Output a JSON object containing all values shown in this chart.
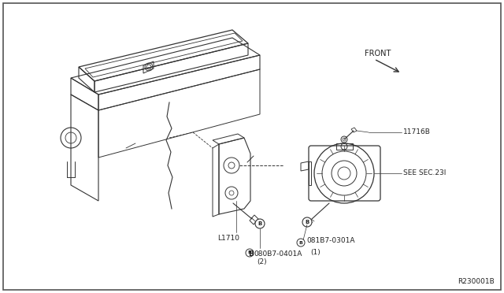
{
  "background_color": "#ffffff",
  "fig_width": 6.4,
  "fig_height": 3.72,
  "dpi": 100,
  "line_color": "#333333",
  "text_color": "#222222",
  "labels": {
    "front": "FRONT",
    "ref_code": "R230001B",
    "part_11716B": "11716B",
    "part_L1710": "L1710",
    "part_see_sec": "SEE SEC.23I",
    "part_080B7_line1": "B 080B7-0401A",
    "part_080B7_line2": "(2)",
    "part_081B7_line1": "B 081B7-0301A",
    "part_081B7_line2": "(1)"
  },
  "font_size_small": 6.5,
  "font_size_ref": 6.5,
  "font_size_front": 7.0
}
